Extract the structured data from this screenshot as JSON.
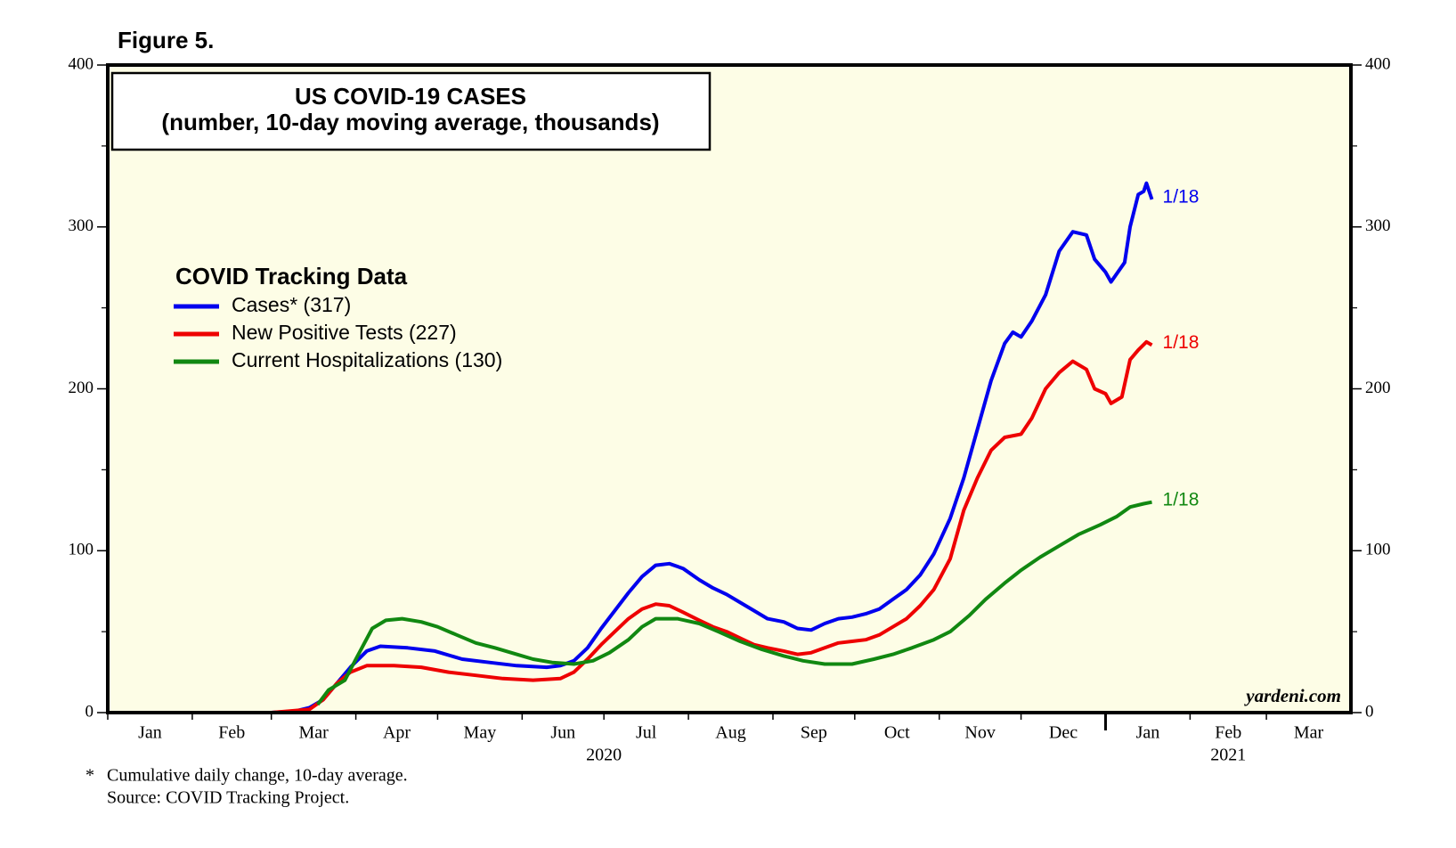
{
  "chart_data": {
    "type": "line",
    "figure_label": "Figure 5.",
    "title": "US COVID-19 CASES",
    "subtitle": "(number, 10-day moving average, thousands)",
    "legend_title": "COVID Tracking Data",
    "legend_position": "upper left",
    "watermark": "yardeni.com",
    "footnotes": [
      "*",
      "Cumulative daily change, 10-day average.",
      "Source: COVID Tracking Project."
    ],
    "background": "#fdfde6",
    "xlim": [
      "2020-01-01",
      "2021-04-01"
    ],
    "xticks": [
      {
        "value": "2020-01-01",
        "label": "Jan"
      },
      {
        "value": "2020-02-01",
        "label": "Feb"
      },
      {
        "value": "2020-03-01",
        "label": "Mar"
      },
      {
        "value": "2020-04-01",
        "label": "Apr"
      },
      {
        "value": "2020-05-01",
        "label": "May"
      },
      {
        "value": "2020-06-01",
        "label": "Jun"
      },
      {
        "value": "2020-07-01",
        "label": "Jul"
      },
      {
        "value": "2020-08-01",
        "label": "Aug"
      },
      {
        "value": "2020-09-01",
        "label": "Sep"
      },
      {
        "value": "2020-10-01",
        "label": "Oct"
      },
      {
        "value": "2020-11-01",
        "label": "Nov"
      },
      {
        "value": "2020-12-01",
        "label": "Dec"
      },
      {
        "value": "2021-01-01",
        "label": "Jan"
      },
      {
        "value": "2021-02-01",
        "label": "Feb"
      },
      {
        "value": "2021-03-01",
        "label": "Mar"
      }
    ],
    "year_labels": [
      {
        "value": "2020-07-01",
        "label": "2020"
      },
      {
        "value": "2021-02-15",
        "label": "2021"
      }
    ],
    "ylim": [
      0,
      400
    ],
    "yticks": [
      0,
      100,
      200,
      300,
      400
    ],
    "minor_yticks": [
      50,
      150,
      250,
      350
    ],
    "y2lim": [
      0,
      400
    ],
    "y2ticks": [
      0,
      100,
      200,
      300,
      400
    ],
    "series": [
      {
        "name": "Cases* (317)",
        "color": "#0000ee",
        "end_label": "1/18",
        "x": [
          "2020-01-28",
          "2020-03-01",
          "2020-03-10",
          "2020-03-15",
          "2020-03-20",
          "2020-03-25",
          "2020-03-30",
          "2020-04-05",
          "2020-04-10",
          "2020-04-20",
          "2020-04-30",
          "2020-05-10",
          "2020-05-20",
          "2020-05-30",
          "2020-06-10",
          "2020-06-15",
          "2020-06-20",
          "2020-06-25",
          "2020-06-30",
          "2020-07-05",
          "2020-07-10",
          "2020-07-15",
          "2020-07-20",
          "2020-07-25",
          "2020-07-30",
          "2020-08-05",
          "2020-08-10",
          "2020-08-15",
          "2020-08-20",
          "2020-08-25",
          "2020-08-30",
          "2020-09-05",
          "2020-09-10",
          "2020-09-15",
          "2020-09-20",
          "2020-09-25",
          "2020-09-30",
          "2020-10-05",
          "2020-10-10",
          "2020-10-15",
          "2020-10-20",
          "2020-10-25",
          "2020-10-30",
          "2020-11-05",
          "2020-11-10",
          "2020-11-15",
          "2020-11-20",
          "2020-11-25",
          "2020-11-28",
          "2020-12-01",
          "2020-12-05",
          "2020-12-10",
          "2020-12-15",
          "2020-12-20",
          "2020-12-25",
          "2020-12-28",
          "2021-01-01",
          "2021-01-03",
          "2021-01-08",
          "2021-01-10",
          "2021-01-13",
          "2021-01-15",
          "2021-01-16",
          "2021-01-18"
        ],
        "values": [
          0,
          0,
          1,
          3,
          8,
          18,
          28,
          38,
          41,
          40,
          38,
          33,
          31,
          29,
          28,
          29,
          32,
          40,
          52,
          63,
          74,
          84,
          91,
          92,
          89,
          82,
          77,
          73,
          68,
          63,
          58,
          56,
          52,
          51,
          55,
          58,
          59,
          61,
          64,
          70,
          76,
          85,
          98,
          120,
          145,
          175,
          205,
          228,
          235,
          232,
          242,
          258,
          285,
          297,
          295,
          280,
          272,
          266,
          278,
          300,
          320,
          322,
          327,
          317
        ]
      },
      {
        "name": "New Positive Tests (227)",
        "color": "#ee0000",
        "end_label": "1/18",
        "x": [
          "2020-01-23",
          "2020-03-01",
          "2020-03-15",
          "2020-03-20",
          "2020-03-25",
          "2020-03-30",
          "2020-04-05",
          "2020-04-15",
          "2020-04-25",
          "2020-05-05",
          "2020-05-15",
          "2020-05-25",
          "2020-06-05",
          "2020-06-15",
          "2020-06-20",
          "2020-06-25",
          "2020-06-30",
          "2020-07-05",
          "2020-07-10",
          "2020-07-15",
          "2020-07-20",
          "2020-07-25",
          "2020-07-30",
          "2020-08-05",
          "2020-08-10",
          "2020-08-15",
          "2020-08-20",
          "2020-08-25",
          "2020-08-30",
          "2020-09-05",
          "2020-09-10",
          "2020-09-15",
          "2020-09-20",
          "2020-09-25",
          "2020-09-30",
          "2020-10-05",
          "2020-10-10",
          "2020-10-15",
          "2020-10-20",
          "2020-10-25",
          "2020-10-30",
          "2020-11-05",
          "2020-11-10",
          "2020-11-15",
          "2020-11-20",
          "2020-11-25",
          "2020-12-01",
          "2020-12-05",
          "2020-12-10",
          "2020-12-15",
          "2020-12-20",
          "2020-12-25",
          "2020-12-28",
          "2021-01-01",
          "2021-01-03",
          "2021-01-07",
          "2021-01-10",
          "2021-01-13",
          "2021-01-16",
          "2021-01-18"
        ],
        "values": [
          0,
          0,
          2,
          8,
          18,
          25,
          29,
          29,
          28,
          25,
          23,
          21,
          20,
          21,
          25,
          33,
          42,
          50,
          58,
          64,
          67,
          66,
          62,
          57,
          53,
          50,
          46,
          42,
          40,
          38,
          36,
          37,
          40,
          43,
          44,
          45,
          48,
          53,
          58,
          66,
          76,
          95,
          125,
          145,
          162,
          170,
          172,
          182,
          200,
          210,
          217,
          212,
          200,
          197,
          191,
          195,
          218,
          224,
          229,
          227
        ]
      },
      {
        "name": "Current Hospitalizations (130)",
        "color": "#118811",
        "end_label": "1/18",
        "x": [
          "2020-03-18",
          "2020-03-22",
          "2020-03-28",
          "2020-04-01",
          "2020-04-07",
          "2020-04-12",
          "2020-04-18",
          "2020-04-25",
          "2020-05-01",
          "2020-05-08",
          "2020-05-15",
          "2020-05-22",
          "2020-05-30",
          "2020-06-05",
          "2020-06-12",
          "2020-06-20",
          "2020-06-27",
          "2020-07-03",
          "2020-07-10",
          "2020-07-15",
          "2020-07-20",
          "2020-07-28",
          "2020-08-05",
          "2020-08-12",
          "2020-08-20",
          "2020-08-28",
          "2020-09-05",
          "2020-09-12",
          "2020-09-20",
          "2020-09-30",
          "2020-10-08",
          "2020-10-15",
          "2020-10-22",
          "2020-10-30",
          "2020-11-05",
          "2020-11-12",
          "2020-11-18",
          "2020-11-25",
          "2020-12-01",
          "2020-12-08",
          "2020-12-15",
          "2020-12-22",
          "2020-12-30",
          "2021-01-05",
          "2021-01-10",
          "2021-01-15",
          "2021-01-18"
        ],
        "values": [
          5,
          14,
          20,
          33,
          52,
          57,
          58,
          56,
          53,
          48,
          43,
          40,
          36,
          33,
          31,
          30,
          32,
          37,
          45,
          53,
          58,
          58,
          55,
          50,
          44,
          39,
          35,
          32,
          30,
          30,
          33,
          36,
          40,
          45,
          50,
          60,
          70,
          80,
          88,
          96,
          103,
          110,
          116,
          121,
          127,
          129,
          130
        ]
      }
    ]
  }
}
